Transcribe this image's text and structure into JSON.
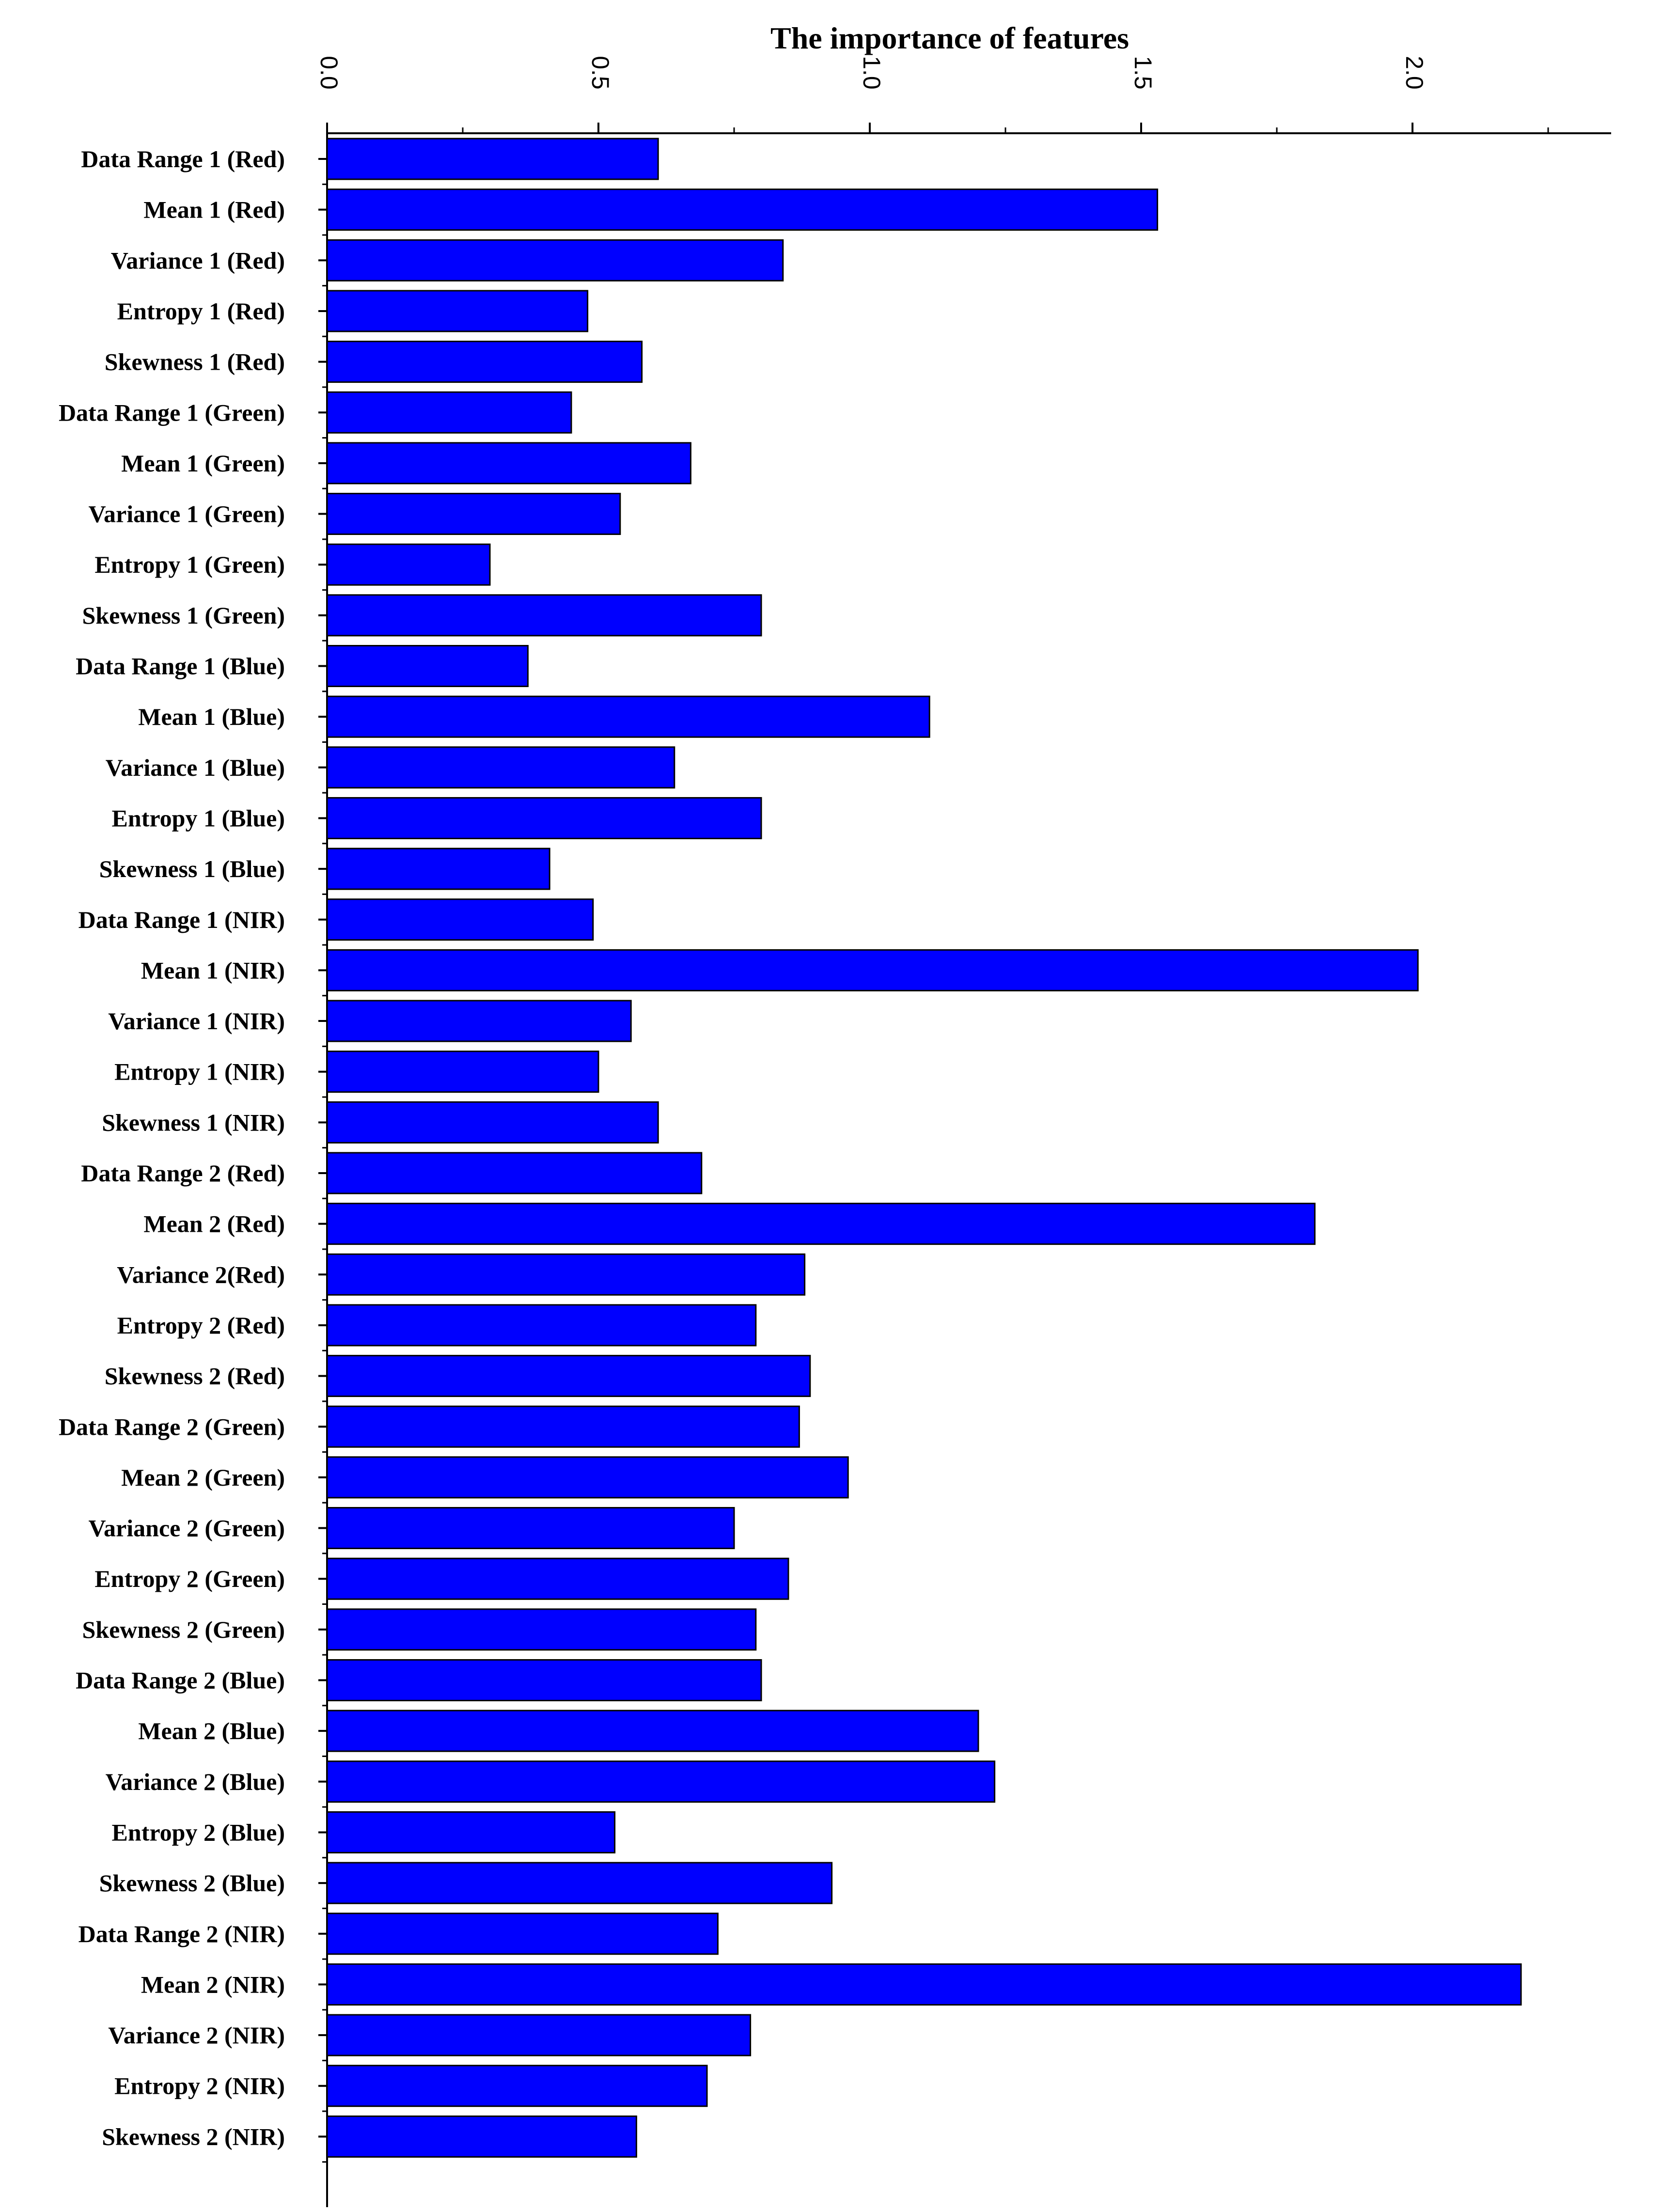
{
  "chart_data": {
    "type": "bar",
    "orientation": "horizontal",
    "title": "The importance of features",
    "xlabel": "",
    "ylabel": "",
    "xlim": [
      0,
      2.38
    ],
    "x_tick_labels": [
      "0.0",
      "0.5",
      "1.0",
      "1.5",
      "2.0"
    ],
    "x_tick_values": [
      0,
      0.5,
      1.0,
      1.5,
      2.0
    ],
    "x_minor_tick_step": 0.25,
    "axis_position": "top",
    "grid": false,
    "legend": "none",
    "bar_color": "#0000ff",
    "bar_edge_color": "#000000",
    "categories": [
      "Data Range 1 (Red)",
      "Mean 1 (Red)",
      "Variance 1 (Red)",
      "Entropy 1 (Red)",
      "Skewness 1 (Red)",
      "Data Range 1 (Green)",
      "Mean 1  (Green)",
      "Variance 1  (Green)",
      "Entropy 1  (Green)",
      "Skewness 1  (Green)",
      "Data Range 1 (Blue)",
      "Mean 1 (Blue)",
      "Variance 1 (Blue)",
      "Entropy 1 (Blue)",
      "Skewness 1 (Blue)",
      "Data Range 1 (NIR)",
      "Mean 1 (NIR)",
      "Variance 1 (NIR)",
      "Entropy 1 (NIR)",
      "Skewness 1 (NIR)",
      "Data Range 2 (Red)",
      "Mean 2 (Red)",
      "Variance 2(Red)",
      "Entropy 2 (Red)",
      "Skewness 2  (Red)",
      "Data Range 2 (Green)",
      "Mean 2  (Green)",
      "Variance 2  (Green)",
      "Entropy 2  (Green)",
      "Skewness 2  (Green)",
      "Data Range 2 (Blue)",
      "Mean 2 (Blue)",
      "Variance 2 (Blue)",
      "Entropy 2 (Blue)",
      "Skewness 2 (Blue)",
      "Data Range 2 (NIR)",
      "Mean 2 (NIR)",
      "Variance 2 (NIR)",
      "Entropy 2 (NIR)",
      "Skewness 2  (NIR)"
    ],
    "values": [
      0.61,
      1.53,
      0.84,
      0.48,
      0.58,
      0.45,
      0.67,
      0.54,
      0.3,
      0.8,
      0.37,
      1.11,
      0.64,
      0.8,
      0.41,
      0.49,
      2.01,
      0.56,
      0.5,
      0.61,
      0.69,
      1.82,
      0.88,
      0.79,
      0.89,
      0.87,
      0.96,
      0.75,
      0.85,
      0.79,
      0.8,
      1.2,
      1.23,
      0.53,
      0.93,
      0.72,
      2.2,
      0.78,
      0.7,
      0.57
    ]
  }
}
